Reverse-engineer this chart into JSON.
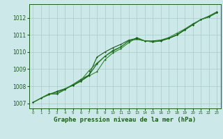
{
  "background_color": "#cce8e8",
  "grid_color": "#aacccc",
  "line_color_main": "#1a5c1a",
  "line_color_light": "#2d8c2d",
  "xlabel": "Graphe pression niveau de la mer (hPa)",
  "xlabel_fontsize": 6.5,
  "xlabel_color": "#1a5c1a",
  "tick_color": "#1a5c1a",
  "xlim": [
    -0.5,
    23.5
  ],
  "ylim": [
    1006.7,
    1012.8
  ],
  "yticks": [
    1007,
    1008,
    1009,
    1010,
    1011,
    1012
  ],
  "xticks": [
    0,
    1,
    2,
    3,
    4,
    5,
    6,
    7,
    8,
    9,
    10,
    11,
    12,
    13,
    14,
    15,
    16,
    17,
    18,
    19,
    20,
    21,
    22,
    23
  ],
  "series1": {
    "x": [
      0,
      1,
      2,
      3,
      4,
      5,
      6,
      7,
      8,
      9,
      10,
      11,
      12,
      13,
      14,
      15,
      16,
      17,
      18,
      19,
      20,
      21,
      22,
      23
    ],
    "y": [
      1007.05,
      1007.3,
      1007.55,
      1007.55,
      1007.8,
      1008.1,
      1008.4,
      1008.65,
      1009.3,
      1009.75,
      1010.05,
      1010.3,
      1010.65,
      1010.75,
      1010.65,
      1010.65,
      1010.7,
      1010.8,
      1011.0,
      1011.3,
      1011.6,
      1011.9,
      1012.1,
      1012.35
    ]
  },
  "series2": {
    "x": [
      0,
      1,
      2,
      3,
      4,
      5,
      6,
      7,
      8,
      9,
      10,
      11,
      12,
      13,
      14,
      15,
      16,
      17,
      18,
      19,
      20,
      21,
      22,
      23
    ],
    "y": [
      1007.05,
      1007.3,
      1007.55,
      1007.65,
      1007.85,
      1008.05,
      1008.3,
      1008.6,
      1008.85,
      1009.55,
      1009.95,
      1010.2,
      1010.55,
      1010.85,
      1010.65,
      1010.6,
      1010.65,
      1010.8,
      1011.0,
      1011.3,
      1011.6,
      1011.9,
      1012.05,
      1012.3
    ]
  },
  "series3": {
    "x": [
      0,
      1,
      2,
      3,
      4,
      5,
      6,
      7,
      8,
      9,
      10,
      11,
      12,
      13,
      14,
      15,
      16,
      17,
      18,
      19,
      20,
      21,
      22,
      23
    ],
    "y": [
      1007.05,
      1007.3,
      1007.5,
      1007.7,
      1007.85,
      1008.05,
      1008.3,
      1008.65,
      1009.7,
      1010.0,
      1010.25,
      1010.45,
      1010.7,
      1010.8,
      1010.65,
      1010.6,
      1010.65,
      1010.8,
      1011.0,
      1011.3,
      1011.6,
      1011.9,
      1012.05,
      1012.3
    ]
  },
  "series4": {
    "x": [
      0,
      1,
      2,
      3,
      4,
      5,
      6,
      7,
      8,
      9,
      10,
      11,
      12,
      13,
      14,
      15,
      16,
      17,
      18,
      19,
      20,
      21,
      22,
      23
    ],
    "y": [
      1007.05,
      1007.3,
      1007.55,
      1007.55,
      1007.85,
      1008.1,
      1008.35,
      1008.9,
      1009.35,
      1009.75,
      1010.1,
      1010.3,
      1010.65,
      1010.75,
      1010.65,
      1010.6,
      1010.7,
      1010.85,
      1011.1,
      1011.35,
      1011.65,
      1011.9,
      1012.05,
      1012.35
    ]
  }
}
